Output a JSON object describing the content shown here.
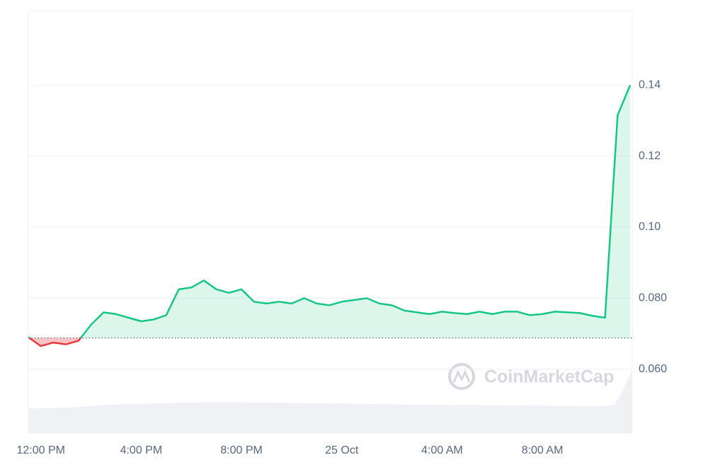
{
  "chart_data": {
    "type": "line",
    "watermark": "CoinMarketCap",
    "categories": [
      null,
      "12:00 PM",
      null,
      null,
      null,
      null,
      null,
      null,
      null,
      "4:00 PM",
      null,
      null,
      null,
      null,
      null,
      null,
      null,
      "8:00 PM",
      null,
      null,
      null,
      null,
      null,
      null,
      null,
      "25 Oct",
      null,
      null,
      null,
      null,
      null,
      null,
      null,
      "4:00 AM",
      null,
      null,
      null,
      null,
      null,
      null,
      null,
      "8:00 AM",
      null,
      null,
      null,
      null,
      null,
      null,
      null
    ],
    "series": [
      {
        "color": "#16c784",
        "below_color": "#ea3943",
        "values": [
          0.069,
          0.0665,
          0.0675,
          0.067,
          0.068,
          0.0725,
          0.076,
          0.0755,
          0.0745,
          0.0735,
          0.074,
          0.0752,
          0.0825,
          0.083,
          0.085,
          0.0825,
          0.0815,
          0.0825,
          0.079,
          0.0785,
          0.079,
          0.0785,
          0.08,
          0.0785,
          0.078,
          0.079,
          0.0795,
          0.08,
          0.0785,
          0.078,
          0.0765,
          0.076,
          0.0755,
          0.0762,
          0.0758,
          0.0755,
          0.0762,
          0.0755,
          0.0762,
          0.0762,
          0.0752,
          0.0755,
          0.0762,
          0.076,
          0.0758,
          0.075,
          0.0745,
          0.1315,
          0.14
        ]
      }
    ],
    "baseline": 0.0688,
    "ylim": [
      0.042,
      0.161
    ],
    "yticks": [
      {
        "value": 0.06,
        "label": "0.060"
      },
      {
        "value": 0.08,
        "label": "0.080"
      },
      {
        "value": 0.1,
        "label": "0.10"
      },
      0.12,
      0.14
    ],
    "grid": true
  }
}
